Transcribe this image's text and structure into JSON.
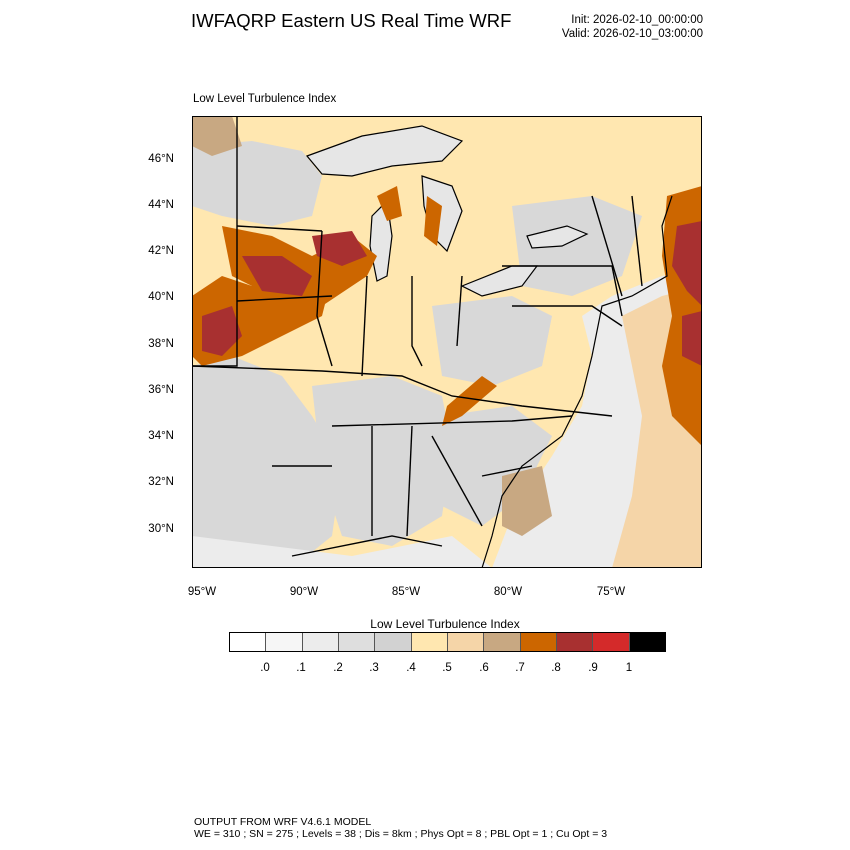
{
  "header": {
    "title": "IWFAQRP Eastern US Real Time WRF",
    "init": "Init: 2026-02-10_00:00:00",
    "valid": "Valid: 2026-02-10_03:00:00"
  },
  "map": {
    "subtitle": "Low Level Turbulence Index",
    "lat_labels": [
      "46°N",
      "44°N",
      "42°N",
      "40°N",
      "38°N",
      "36°N",
      "34°N",
      "32°N",
      "30°N"
    ],
    "lon_labels": [
      "95°W",
      "90°W",
      "85°W",
      "80°W",
      "75°W"
    ],
    "colors": {
      "land_light": "#ffe7b0",
      "land_grey": "#d8d8d8",
      "water_grey": "#ececec",
      "high": "#cc6600",
      "very_high": "#a83030",
      "mid": "#c8a882"
    }
  },
  "colorbar": {
    "title": "Low Level Turbulence Index",
    "labels": [
      ".0",
      ".1",
      ".2",
      ".3",
      ".4",
      ".5",
      ".6",
      ".7",
      ".8",
      ".9",
      "1"
    ],
    "colors": [
      "#ffffff",
      "#f6f6f6",
      "#ececec",
      "#dedede",
      "#d2d2d2",
      "#ffe7b0",
      "#f5d5a8",
      "#c8a882",
      "#cc6600",
      "#a83030",
      "#d42a2a",
      "#000000"
    ]
  },
  "footer": {
    "line1": "OUTPUT FROM WRF V4.6.1 MODEL",
    "line2": "WE = 310 ; SN = 275 ; Levels = 38 ; Dis = 8km ; Phys Opt = 8 ; PBL Opt = 1 ; Cu Opt = 3"
  }
}
